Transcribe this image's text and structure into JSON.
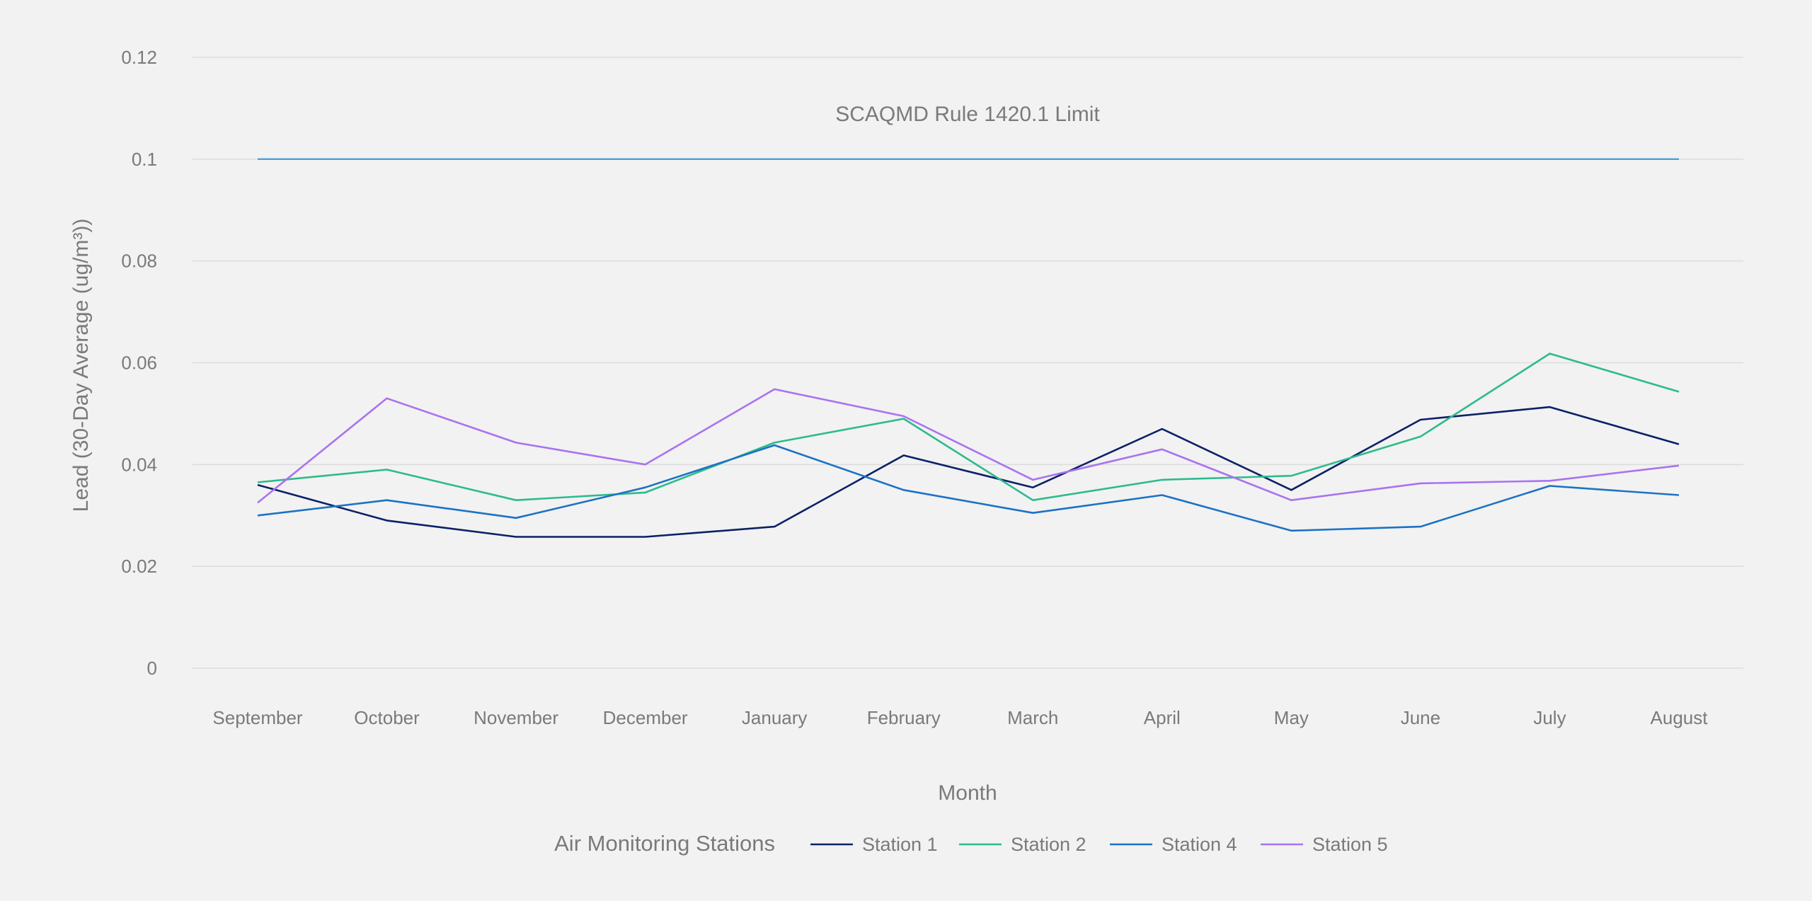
{
  "chart_data": {
    "type": "line",
    "title": "",
    "xlabel": "Month",
    "ylabel": "Lead (30-Day Average (ug/m³))",
    "ylim": [
      0,
      0.12
    ],
    "yticks": [
      "0",
      "0.02",
      "0.04",
      "0.06",
      "0.08",
      "0.1",
      "0.12"
    ],
    "ytick_values": [
      0,
      0.02,
      0.04,
      0.06,
      0.08,
      0.1,
      0.12
    ],
    "grid": true,
    "categories": [
      "September",
      "October",
      "November",
      "December",
      "January",
      "February",
      "March",
      "April",
      "May",
      "June",
      "July",
      "August"
    ],
    "reference_line": {
      "label": "SCAQMD Rule 1420.1 Limit",
      "value": 0.1,
      "color": "#4a9fd8"
    },
    "legend": {
      "title": "Air Monitoring Stations",
      "placement": "bottom-center"
    },
    "series": [
      {
        "name": "Station 1",
        "color": "#0b2168",
        "values": [
          0.036,
          0.029,
          0.0258,
          0.0258,
          0.0278,
          0.0418,
          0.0355,
          0.047,
          0.035,
          0.0488,
          0.0513,
          0.044
        ]
      },
      {
        "name": "Station 2",
        "color": "#2dbb8c",
        "values": [
          0.0365,
          0.039,
          0.033,
          0.0345,
          0.0443,
          0.049,
          0.033,
          0.037,
          0.0378,
          0.0455,
          0.0618,
          0.0543
        ]
      },
      {
        "name": "Station 4",
        "color": "#1c72c4",
        "values": [
          0.03,
          0.033,
          0.0295,
          0.0355,
          0.0438,
          0.035,
          0.0305,
          0.034,
          0.027,
          0.0278,
          0.0358,
          0.034
        ]
      },
      {
        "name": "Station 5",
        "color": "#a973f0",
        "values": [
          0.0325,
          0.053,
          0.0443,
          0.04,
          0.0548,
          0.0495,
          0.037,
          0.043,
          0.033,
          0.0363,
          0.0368,
          0.0398
        ]
      }
    ]
  }
}
